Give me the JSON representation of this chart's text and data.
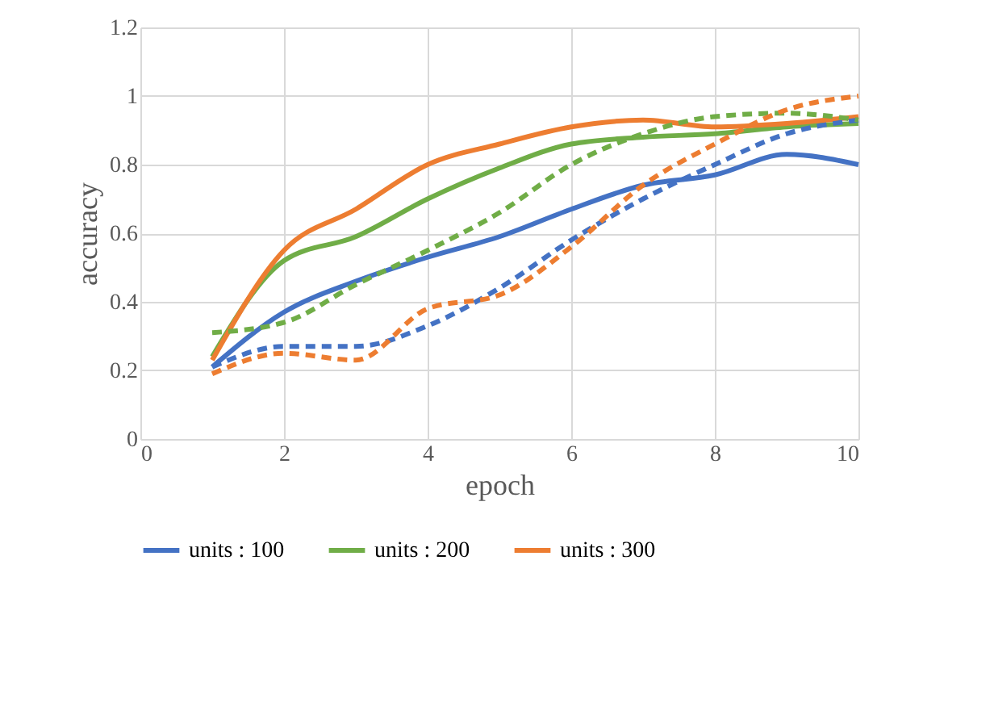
{
  "chart_data": {
    "type": "line",
    "xlabel": "epoch",
    "ylabel": "accuracy",
    "x": [
      1,
      2,
      3,
      4,
      5,
      6,
      7,
      8,
      9,
      10
    ],
    "series": [
      {
        "name": "units : 100",
        "color": "#4472c4",
        "line_style": "solid",
        "values": [
          0.21,
          0.37,
          0.46,
          0.53,
          0.59,
          0.67,
          0.74,
          0.77,
          0.83,
          0.8
        ]
      },
      {
        "name": "units : 200",
        "color": "#70ad47",
        "line_style": "solid",
        "values": [
          0.24,
          0.52,
          0.59,
          0.7,
          0.79,
          0.86,
          0.88,
          0.89,
          0.91,
          0.92
        ]
      },
      {
        "name": "units : 300",
        "color": "#ed7d31",
        "line_style": "solid",
        "values": [
          0.23,
          0.55,
          0.67,
          0.8,
          0.86,
          0.91,
          0.93,
          0.91,
          0.92,
          0.94
        ]
      },
      {
        "color": "#4472c4",
        "line_style": "dashed",
        "values": [
          0.21,
          0.27,
          0.27,
          0.33,
          0.44,
          0.58,
          0.7,
          0.8,
          0.89,
          0.93
        ]
      },
      {
        "color": "#70ad47",
        "line_style": "dashed",
        "values": [
          0.31,
          0.34,
          0.45,
          0.55,
          0.66,
          0.8,
          0.89,
          0.94,
          0.95,
          0.93
        ]
      },
      {
        "color": "#ed7d31",
        "line_style": "dashed",
        "values": [
          0.19,
          0.25,
          0.23,
          0.38,
          0.42,
          0.56,
          0.74,
          0.86,
          0.96,
          1.0
        ]
      }
    ],
    "xlim": [
      0,
      10
    ],
    "xticks": [
      0,
      2,
      4,
      6,
      8,
      10
    ],
    "ylim": [
      0,
      1.2
    ],
    "yticks": [
      0,
      0.2,
      0.4,
      0.6,
      0.8,
      1,
      1.2
    ],
    "grid": true,
    "legend": "bottom",
    "marker": "none"
  }
}
